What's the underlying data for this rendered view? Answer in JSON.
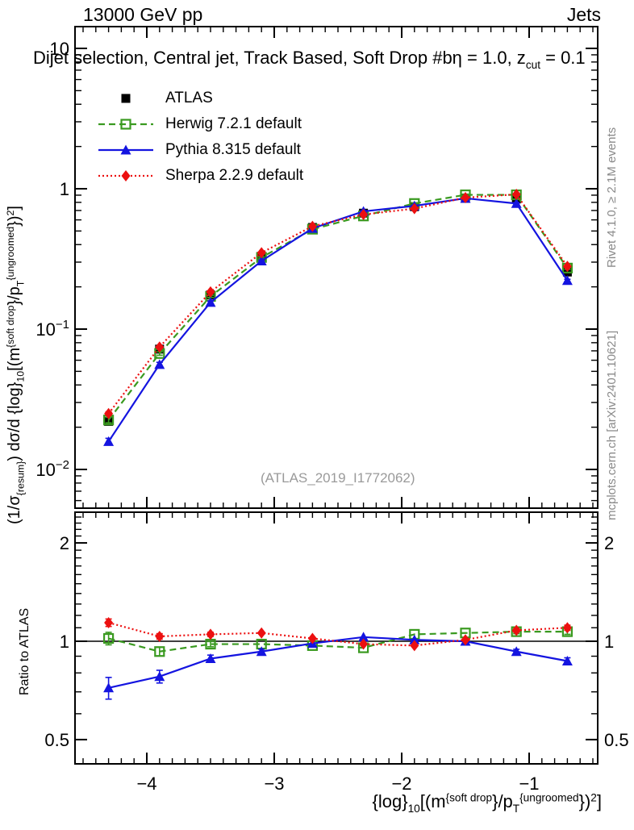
{
  "header": {
    "left": "13000 GeV pp",
    "right": "Jets"
  },
  "title_parts": [
    {
      "t": "Dijet selection, Central jet, Track Based, Soft Drop #bη = 1.0, z"
    },
    {
      "t": "cut",
      "s": "sub"
    },
    {
      "t": " = 0.1"
    }
  ],
  "watermark": "(ATLAS_2019_I1772062)",
  "credits": {
    "rivet": "Rivet 4.1.0, ≥ 2.1M events",
    "mcplots": "mcplots.cern.ch [arXiv:2401.10621]"
  },
  "axes": {
    "ylabel_parts": [
      {
        "t": "(1/σ"
      },
      {
        "t": "{resum}",
        "s": "sub"
      },
      {
        "t": ") dσ/d {log}"
      },
      {
        "t": "10",
        "s": "sub"
      },
      {
        "t": "[(m"
      },
      {
        "t": "{soft drop",
        "s": "sup"
      },
      {
        "t": "}/p"
      },
      {
        "t": "T",
        "s": "sub"
      },
      {
        "t": "{ungroomed",
        "s": "sup"
      },
      {
        "t": "})"
      },
      {
        "t": "2",
        "s": "sup"
      },
      {
        "t": "]"
      }
    ],
    "xlabel_parts": [
      {
        "t": "{log}"
      },
      {
        "t": "10",
        "s": "sub"
      },
      {
        "t": "[(m"
      },
      {
        "t": "{soft drop",
        "s": "sup"
      },
      {
        "t": "}/p"
      },
      {
        "t": "T",
        "s": "sub"
      },
      {
        "t": "{ungroomed",
        "s": "sup"
      },
      {
        "t": "})"
      },
      {
        "t": "2",
        "s": "sup"
      },
      {
        "t": "]"
      }
    ],
    "ratio_label": "Ratio to ATLAS",
    "main_ytick_labels": [
      {
        "v": 10,
        "t": "10"
      },
      {
        "v": 1,
        "t": "1"
      },
      {
        "v": 0.1,
        "t": "10",
        "e": "−1"
      },
      {
        "v": 0.01,
        "t": "10",
        "e": "−2"
      }
    ],
    "xtick_labels": [
      {
        "v": -4,
        "t": "−4"
      },
      {
        "v": -3,
        "t": "−3"
      },
      {
        "v": -2,
        "t": "−2"
      },
      {
        "v": -1,
        "t": "−1"
      }
    ],
    "ratio_ytick_labels": [
      {
        "v": 2,
        "t": "2"
      },
      {
        "v": 1,
        "t": "1"
      },
      {
        "v": 0.5,
        "t": "0.5"
      }
    ]
  },
  "chart_data": {
    "type": "line",
    "title": "Dijet selection, Central jet, Track Based, Soft Drop β = 1.0, z_cut = 0.1",
    "xlabel": "log_10[(m^{soft drop}/p_T^{ungroomed})^2]",
    "ylabel": "(1/σ_resum) dσ/d log_10[(m^{soft drop}/p_T^{ungroomed})^2]",
    "legend_position": "top-left",
    "grid": false,
    "x": [
      -4.3,
      -3.9,
      -3.5,
      -3.1,
      -2.7,
      -2.3,
      -1.9,
      -1.5,
      -1.1,
      -0.7
    ],
    "main_axis": {
      "log_y": true,
      "xlim": [
        -4.563,
        -0.462
      ],
      "ylim": [
        0.0053,
        14.3
      ],
      "yticks": [
        10,
        1,
        0.1,
        0.01
      ],
      "xticks": [
        -4,
        -3,
        -2,
        -1
      ]
    },
    "ratio_axis": {
      "log_y": true,
      "ylim": [
        0.42,
        2.48
      ],
      "yticks": [
        2,
        1,
        0.5
      ]
    },
    "series": [
      {
        "name": "ATLAS",
        "color": "#000000",
        "marker": "square",
        "line": "none",
        "values": [
          0.022,
          0.072,
          0.175,
          0.33,
          0.53,
          0.67,
          0.745,
          0.855,
          0.845,
          0.255
        ],
        "rel_err": [
          0.05,
          0.025,
          0.015,
          0.01,
          0.01,
          0.01,
          0.01,
          0.01,
          0.012,
          0.02
        ],
        "in_ratio": false
      },
      {
        "name": "Herwig 7.2.1 default",
        "color": "#3a9a20",
        "marker": "open-square",
        "line": "dashed",
        "values": [
          0.0225,
          0.067,
          0.171,
          0.324,
          0.515,
          0.64,
          0.785,
          0.905,
          0.905,
          0.272
        ],
        "ratio": [
          1.02,
          0.93,
          0.98,
          0.98,
          0.97,
          0.955,
          1.05,
          1.06,
          1.07,
          1.07
        ],
        "ratio_err": [
          0.045,
          0.028,
          0.018,
          0.012,
          0.01,
          0.01,
          0.012,
          0.012,
          0.015,
          0.02
        ],
        "in_ratio": true
      },
      {
        "name": "Pythia 8.315 default",
        "color": "#1414e0",
        "marker": "triangle",
        "line": "solid",
        "values": [
          0.0158,
          0.056,
          0.155,
          0.306,
          0.522,
          0.69,
          0.755,
          0.855,
          0.785,
          0.222
        ],
        "ratio": [
          0.72,
          0.78,
          0.885,
          0.93,
          0.985,
          1.03,
          1.01,
          1.0,
          0.93,
          0.87
        ],
        "ratio_err": [
          0.055,
          0.035,
          0.022,
          0.015,
          0.012,
          0.012,
          0.012,
          0.012,
          0.015,
          0.02
        ],
        "in_ratio": true
      },
      {
        "name": "Sherpa 2.2.9 default",
        "color": "#ec1010",
        "marker": "diamond",
        "line": "dotted",
        "values": [
          0.025,
          0.0745,
          0.184,
          0.35,
          0.54,
          0.655,
          0.722,
          0.864,
          0.912,
          0.28
        ],
        "ratio": [
          1.14,
          1.035,
          1.05,
          1.06,
          1.02,
          0.98,
          0.97,
          1.01,
          1.08,
          1.1
        ],
        "ratio_err": [
          0.03,
          0.02,
          0.015,
          0.01,
          0.01,
          0.01,
          0.012,
          0.012,
          0.015,
          0.02
        ],
        "in_ratio": true
      }
    ]
  },
  "legend": [
    {
      "label": "ATLAS",
      "color": "#000000",
      "marker": "square",
      "line": "none"
    },
    {
      "label": "Herwig 7.2.1 default",
      "color": "#3a9a20",
      "marker": "open-square",
      "line": "dashed"
    },
    {
      "label": "Pythia 8.315 default",
      "color": "#1414e0",
      "marker": "triangle",
      "line": "solid"
    },
    {
      "label": "Sherpa 2.2.9 default",
      "color": "#ec1010",
      "marker": "diamond",
      "line": "dotted"
    }
  ]
}
